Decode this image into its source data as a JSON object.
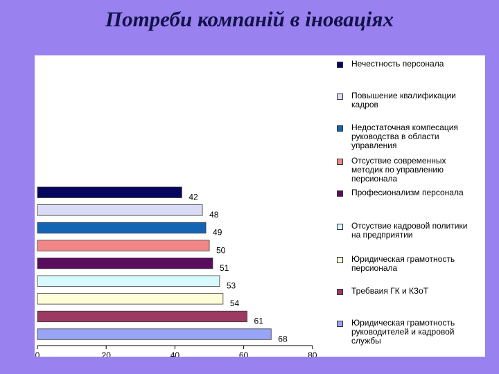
{
  "slide": {
    "title": "Потреби компаній в іноваціях"
  },
  "chart_data": {
    "type": "bar",
    "orientation": "horizontal",
    "title": "",
    "xlabel": "",
    "ylabel": "",
    "xlim": [
      0,
      80
    ],
    "x_tick_labels": [
      "0",
      "20",
      "40",
      "60",
      "80"
    ],
    "grid": false,
    "legend_position": "right",
    "series": [
      {
        "name": "Нечестность персонала",
        "value": 42,
        "color": "#06065e"
      },
      {
        "name": "Повышение квалификации кадров",
        "value": 48,
        "color": "#dadcf6"
      },
      {
        "name": "Недостаточная компесация\nруководства в области\nуправления",
        "value": 49,
        "color": "#1464b4"
      },
      {
        "name": "Отсуствие современных\nметодик по управлению\nперсионала",
        "value": 50,
        "color": "#f08686"
      },
      {
        "name": "Професионализм персонала",
        "value": 51,
        "color": "#580e5c"
      },
      {
        "name": "Отсуствие кадровой политики\nна предприятии",
        "value": 53,
        "color": "#d8fafe"
      },
      {
        "name": "Юридическая грамотность\nперсионала",
        "value": 54,
        "color": "#fefed8"
      },
      {
        "name": "Требваия ГК и КЗоТ",
        "value": 61,
        "color": "#9c3a64"
      },
      {
        "name": "Юридическая грамотность\nруководителей и кадровой\nслужбы",
        "value": 68,
        "color": "#98a4f6"
      }
    ]
  }
}
